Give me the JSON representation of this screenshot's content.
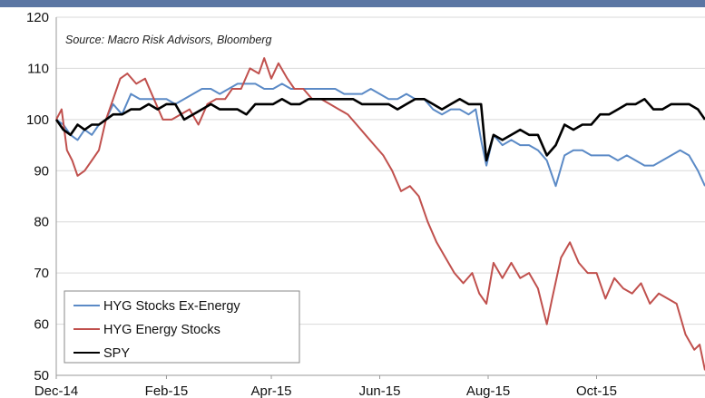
{
  "chart_data": {
    "type": "line",
    "annotation": "Source: Macro Risk Advisors, Bloomberg",
    "ylim": [
      50,
      120
    ],
    "yticks": [
      50,
      60,
      70,
      80,
      90,
      100,
      110,
      120
    ],
    "xticks": [
      "Dec-14",
      "Feb-15",
      "Apr-15",
      "Jun-15",
      "Aug-15",
      "Oct-15"
    ],
    "xrange": [
      "2014-12-01",
      "2015-12-01"
    ],
    "grid": "horizontal",
    "legend_position": "bottom-left",
    "series": [
      {
        "name": "HYG Stocks Ex-Energy",
        "color": "#5b8ac6",
        "x": [
          "2014-12-01",
          "2014-12-05",
          "2014-12-09",
          "2014-12-13",
          "2014-12-17",
          "2014-12-21",
          "2014-12-25",
          "2014-12-29",
          "2015-01-02",
          "2015-01-07",
          "2015-01-12",
          "2015-01-17",
          "2015-01-22",
          "2015-01-27",
          "2015-02-01",
          "2015-02-06",
          "2015-02-11",
          "2015-02-16",
          "2015-02-21",
          "2015-02-26",
          "2015-03-03",
          "2015-03-08",
          "2015-03-13",
          "2015-03-18",
          "2015-03-23",
          "2015-03-28",
          "2015-04-02",
          "2015-04-07",
          "2015-04-12",
          "2015-04-17",
          "2015-04-22",
          "2015-04-27",
          "2015-05-02",
          "2015-05-07",
          "2015-05-12",
          "2015-05-17",
          "2015-05-22",
          "2015-05-27",
          "2015-06-01",
          "2015-06-06",
          "2015-06-11",
          "2015-06-16",
          "2015-06-21",
          "2015-06-26",
          "2015-07-01",
          "2015-07-06",
          "2015-07-11",
          "2015-07-16",
          "2015-07-21",
          "2015-07-25",
          "2015-07-28",
          "2015-07-31",
          "2015-08-04",
          "2015-08-09",
          "2015-08-14",
          "2015-08-19",
          "2015-08-24",
          "2015-08-29",
          "2015-09-03",
          "2015-09-08",
          "2015-09-13",
          "2015-09-18",
          "2015-09-23",
          "2015-09-28",
          "2015-10-03",
          "2015-10-08",
          "2015-10-13",
          "2015-10-18",
          "2015-10-23",
          "2015-10-28",
          "2015-11-02",
          "2015-11-07",
          "2015-11-12",
          "2015-11-17",
          "2015-11-22",
          "2015-11-27",
          "2015-12-01"
        ],
        "values": [
          100,
          99,
          97,
          96,
          98,
          97,
          99,
          100,
          103,
          101,
          105,
          104,
          104,
          104,
          104,
          103,
          104,
          105,
          106,
          106,
          105,
          106,
          107,
          107,
          107,
          106,
          106,
          107,
          106,
          106,
          106,
          106,
          106,
          106,
          105,
          105,
          105,
          106,
          105,
          104,
          104,
          105,
          104,
          104,
          102,
          101,
          102,
          102,
          101,
          102,
          96,
          91,
          97,
          95,
          96,
          95,
          95,
          94,
          92,
          87,
          93,
          94,
          94,
          93,
          93,
          93,
          92,
          93,
          92,
          91,
          91,
          92,
          93,
          94,
          93,
          90,
          87
        ]
      },
      {
        "name": "HYG Energy Stocks",
        "color": "#c0504d",
        "x": [
          "2014-12-01",
          "2014-12-04",
          "2014-12-07",
          "2014-12-10",
          "2014-12-13",
          "2014-12-17",
          "2014-12-21",
          "2014-12-25",
          "2014-12-29",
          "2015-01-02",
          "2015-01-06",
          "2015-01-10",
          "2015-01-15",
          "2015-01-20",
          "2015-01-25",
          "2015-01-30",
          "2015-02-04",
          "2015-02-09",
          "2015-02-14",
          "2015-02-19",
          "2015-02-24",
          "2015-03-01",
          "2015-03-06",
          "2015-03-10",
          "2015-03-15",
          "2015-03-20",
          "2015-03-25",
          "2015-03-28",
          "2015-04-01",
          "2015-04-05",
          "2015-04-10",
          "2015-04-14",
          "2015-04-19",
          "2015-04-24",
          "2015-04-29",
          "2015-05-04",
          "2015-05-09",
          "2015-05-14",
          "2015-05-19",
          "2015-05-24",
          "2015-05-29",
          "2015-06-03",
          "2015-06-08",
          "2015-06-13",
          "2015-06-18",
          "2015-06-23",
          "2015-06-28",
          "2015-07-03",
          "2015-07-08",
          "2015-07-13",
          "2015-07-18",
          "2015-07-23",
          "2015-07-27",
          "2015-07-31",
          "2015-08-04",
          "2015-08-09",
          "2015-08-14",
          "2015-08-19",
          "2015-08-24",
          "2015-08-29",
          "2015-09-03",
          "2015-09-06",
          "2015-09-11",
          "2015-09-16",
          "2015-09-21",
          "2015-09-26",
          "2015-10-01",
          "2015-10-06",
          "2015-10-11",
          "2015-10-16",
          "2015-10-21",
          "2015-10-26",
          "2015-10-31",
          "2015-11-05",
          "2015-11-10",
          "2015-11-15",
          "2015-11-20",
          "2015-11-25",
          "2015-11-28",
          "2015-12-01"
        ],
        "values": [
          100,
          102,
          94,
          92,
          89,
          90,
          92,
          94,
          100,
          104,
          108,
          109,
          107,
          108,
          104,
          100,
          100,
          101,
          102,
          99,
          103,
          104,
          104,
          106,
          106,
          110,
          109,
          112,
          108,
          111,
          108,
          106,
          106,
          104,
          104,
          103,
          102,
          101,
          99,
          97,
          95,
          93,
          90,
          86,
          87,
          85,
          80,
          76,
          73,
          70,
          68,
          70,
          66,
          64,
          72,
          69,
          72,
          69,
          70,
          67,
          60,
          65,
          73,
          76,
          72,
          70,
          70,
          65,
          69,
          67,
          66,
          68,
          64,
          66,
          65,
          64,
          58,
          55,
          56,
          51
        ]
      },
      {
        "name": "SPY",
        "color": "#000000",
        "x": [
          "2014-12-01",
          "2014-12-05",
          "2014-12-09",
          "2014-12-13",
          "2014-12-17",
          "2014-12-21",
          "2014-12-25",
          "2014-12-29",
          "2015-01-02",
          "2015-01-07",
          "2015-01-12",
          "2015-01-17",
          "2015-01-22",
          "2015-01-27",
          "2015-02-01",
          "2015-02-06",
          "2015-02-11",
          "2015-02-16",
          "2015-02-21",
          "2015-02-26",
          "2015-03-03",
          "2015-03-08",
          "2015-03-13",
          "2015-03-18",
          "2015-03-23",
          "2015-03-28",
          "2015-04-02",
          "2015-04-07",
          "2015-04-12",
          "2015-04-17",
          "2015-04-22",
          "2015-04-27",
          "2015-05-02",
          "2015-05-07",
          "2015-05-12",
          "2015-05-17",
          "2015-05-22",
          "2015-05-27",
          "2015-06-01",
          "2015-06-06",
          "2015-06-11",
          "2015-06-16",
          "2015-06-21",
          "2015-06-26",
          "2015-07-01",
          "2015-07-06",
          "2015-07-11",
          "2015-07-16",
          "2015-07-21",
          "2015-07-25",
          "2015-07-28",
          "2015-07-31",
          "2015-08-04",
          "2015-08-09",
          "2015-08-14",
          "2015-08-19",
          "2015-08-24",
          "2015-08-29",
          "2015-09-03",
          "2015-09-08",
          "2015-09-13",
          "2015-09-18",
          "2015-09-23",
          "2015-09-28",
          "2015-10-03",
          "2015-10-08",
          "2015-10-13",
          "2015-10-18",
          "2015-10-23",
          "2015-10-28",
          "2015-11-02",
          "2015-11-07",
          "2015-11-12",
          "2015-11-17",
          "2015-11-22",
          "2015-11-27",
          "2015-12-01"
        ],
        "values": [
          100,
          98,
          97,
          99,
          98,
          99,
          99,
          100,
          101,
          101,
          102,
          102,
          103,
          102,
          103,
          103,
          100,
          101,
          102,
          103,
          102,
          102,
          102,
          101,
          103,
          103,
          103,
          104,
          103,
          103,
          104,
          104,
          104,
          104,
          104,
          104,
          103,
          103,
          103,
          103,
          102,
          103,
          104,
          104,
          103,
          102,
          103,
          104,
          103,
          103,
          103,
          92,
          97,
          96,
          97,
          98,
          97,
          97,
          93,
          95,
          99,
          98,
          99,
          99,
          101,
          101,
          102,
          103,
          103,
          104,
          102,
          102,
          103,
          103,
          103,
          102,
          100
        ]
      }
    ]
  }
}
